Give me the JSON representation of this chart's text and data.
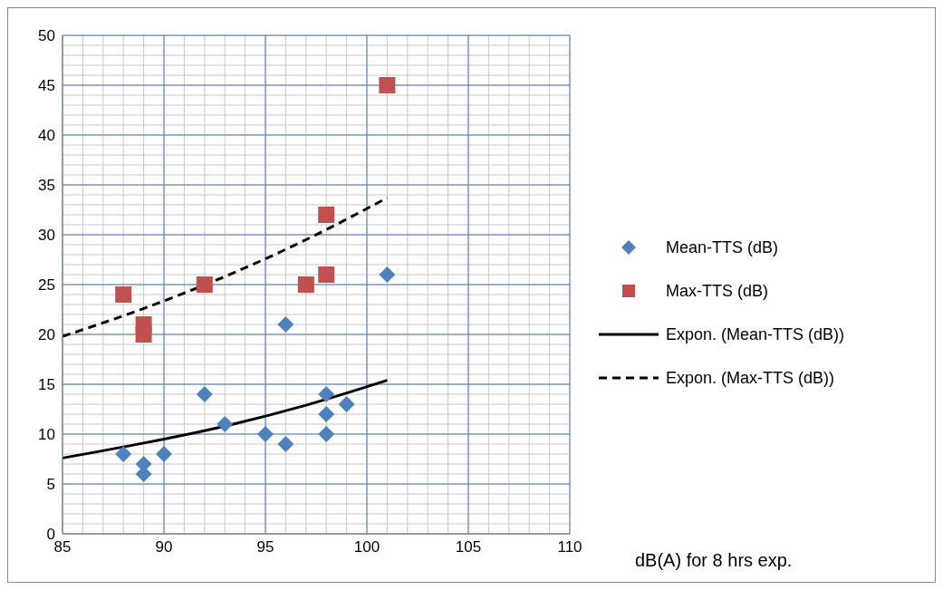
{
  "chart_data": {
    "type": "scatter",
    "xlabel": "dB(A) for 8 hrs exp.",
    "xlim": [
      85,
      110
    ],
    "xticks": [
      85,
      90,
      95,
      100,
      105,
      110
    ],
    "ylim": [
      0,
      50
    ],
    "yticks": [
      0,
      5,
      10,
      15,
      20,
      25,
      30,
      35,
      40,
      45,
      50
    ],
    "grid": true,
    "legend": "right",
    "series": [
      {
        "name": "Mean-TTS (dB)",
        "marker": "diamond",
        "color": "#4f81bd",
        "x": [
          88,
          89,
          89,
          90,
          92,
          93,
          95,
          96,
          96,
          98,
          98,
          98,
          99,
          101
        ],
        "values": [
          8,
          7,
          6,
          8,
          14,
          11,
          10,
          21,
          9,
          14,
          12,
          10,
          13,
          26
        ]
      },
      {
        "name": "Max-TTS (dB)",
        "marker": "square",
        "color": "#c0504d",
        "x": [
          88,
          89,
          89,
          92,
          97,
          98,
          98,
          101
        ],
        "values": [
          24,
          21,
          20,
          25,
          25,
          32,
          26,
          45
        ]
      },
      {
        "name": "Expon. (Mean-TTS (dB))",
        "type": "line",
        "marker": "none",
        "line_style": "solid",
        "color": "#000000",
        "x": [
          85,
          89,
          93,
          97,
          101
        ],
        "values": [
          7.6,
          9.1,
          10.8,
          12.9,
          15.4
        ]
      },
      {
        "name": "Expon. (Max-TTS (dB))",
        "type": "line",
        "marker": "none",
        "line_style": "dashed",
        "color": "#000000",
        "x": [
          85,
          89,
          93,
          97,
          101
        ],
        "values": [
          19.8,
          22.6,
          25.8,
          29.5,
          33.7
        ]
      }
    ]
  }
}
